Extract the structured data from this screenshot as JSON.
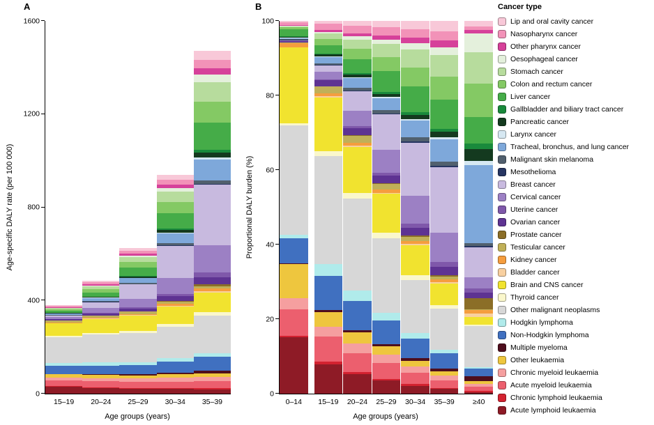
{
  "legend": {
    "title": "Cancer type",
    "items": [
      {
        "label": "Lip and oral cavity cancer",
        "color": "#f8c8d8"
      },
      {
        "label": "Nasopharynx cancer",
        "color": "#f292b8"
      },
      {
        "label": "Other pharynx cancer",
        "color": "#d6419a"
      },
      {
        "label": "Oesophageal cancer",
        "color": "#e4f0dc"
      },
      {
        "label": "Stomach cancer",
        "color": "#b7dc9d"
      },
      {
        "label": "Colon and rectum cancer",
        "color": "#84c964"
      },
      {
        "label": "Liver cancer",
        "color": "#45ac48"
      },
      {
        "label": "Gallbladder and biliary tract cancer",
        "color": "#198a3c"
      },
      {
        "label": "Pancreatic cancer",
        "color": "#143a1f"
      },
      {
        "label": "Larynx cancer",
        "color": "#d6e8f2"
      },
      {
        "label": "Tracheal, bronchus, and lung cancer",
        "color": "#7ea8da"
      },
      {
        "label": "Malignant skin melanoma",
        "color": "#51606e"
      },
      {
        "label": "Mesothelioma",
        "color": "#263561"
      },
      {
        "label": "Breast cancer",
        "color": "#c8badf"
      },
      {
        "label": "Cervical cancer",
        "color": "#9c80c4"
      },
      {
        "label": "Uterine cancer",
        "color": "#7f58aa"
      },
      {
        "label": "Ovarian cancer",
        "color": "#5e3392"
      },
      {
        "label": "Prostate cancer",
        "color": "#8b6e27"
      },
      {
        "label": "Testicular cancer",
        "color": "#c0b058"
      },
      {
        "label": "Kidney cancer",
        "color": "#f59d3e"
      },
      {
        "label": "Bladder cancer",
        "color": "#f8d0a0"
      },
      {
        "label": "Brain and CNS cancer",
        "color": "#f1e32f"
      },
      {
        "label": "Thyroid cancer",
        "color": "#faf7cc"
      },
      {
        "label": "Other malignant neoplasms",
        "color": "#d7d7d7"
      },
      {
        "label": "Hodgkin lymphoma",
        "color": "#b0ebeb"
      },
      {
        "label": "Non-Hodgkin lymphoma",
        "color": "#4070c0"
      },
      {
        "label": "Multiple myeloma",
        "color": "#4e0e1d"
      },
      {
        "label": "Other leukaemia",
        "color": "#eec63e"
      },
      {
        "label": "Chronic myeloid leukaemia",
        "color": "#f59f9f"
      },
      {
        "label": "Acute myeloid leukaemia",
        "color": "#ec5f6e"
      },
      {
        "label": "Chronic lymphoid leukaemia",
        "color": "#d32230"
      },
      {
        "label": "Acute lymphoid leukaemia",
        "color": "#8e1b26"
      }
    ]
  },
  "chart_data": [
    {
      "type": "bar",
      "stacked": true,
      "normalized": false,
      "panel_label": "A",
      "xlabel": "Age groups (years)",
      "ylabel": "Age-specific DALY rate (per 100 000)",
      "ylim": [
        0,
        1600
      ],
      "yticks": [
        0,
        400,
        800,
        1200,
        1600
      ],
      "bar_gap": 0,
      "separator_after": [],
      "categories": [
        "15–19",
        "20–24",
        "25–29",
        "30–34",
        "35–39"
      ],
      "series": [
        {
          "name": "Lip and oral cavity cancer",
          "values": [
            3,
            6,
            10,
            20,
            40
          ]
        },
        {
          "name": "Nasopharynx cancer",
          "values": [
            6,
            10,
            14,
            22,
            35
          ]
        },
        {
          "name": "Other pharynx cancer",
          "values": [
            2,
            4,
            7,
            14,
            28
          ]
        },
        {
          "name": "Oesophageal cancer",
          "values": [
            2,
            4,
            7,
            16,
            32
          ]
        },
        {
          "name": "Stomach cancer",
          "values": [
            5,
            12,
            22,
            45,
            85
          ]
        },
        {
          "name": "Colon and rectum cancer",
          "values": [
            7,
            14,
            24,
            48,
            90
          ]
        },
        {
          "name": "Liver cancer",
          "values": [
            8,
            18,
            35,
            65,
            115
          ]
        },
        {
          "name": "Gallbladder and biliary tract cancer",
          "values": [
            1,
            2,
            3,
            6,
            12
          ]
        },
        {
          "name": "Pancreatic cancer",
          "values": [
            2,
            3,
            5,
            11,
            22
          ]
        },
        {
          "name": "Larynx cancer",
          "values": [
            1,
            1.5,
            2,
            4,
            8
          ]
        },
        {
          "name": "Tracheal, bronchus, and lung cancer",
          "values": [
            6,
            12,
            20,
            42,
            90
          ]
        },
        {
          "name": "Malignant skin melanoma",
          "values": [
            2,
            4,
            6,
            10,
            15
          ]
        },
        {
          "name": "Mesothelioma",
          "values": [
            0.5,
            1,
            1.5,
            3,
            5
          ]
        },
        {
          "name": "Breast cancer",
          "values": [
            6,
            25,
            60,
            135,
            260
          ]
        },
        {
          "name": "Cervical cancer",
          "values": [
            8,
            20,
            38,
            70,
            115
          ]
        },
        {
          "name": "Uterine cancer",
          "values": [
            1,
            3,
            5,
            10,
            20
          ]
        },
        {
          "name": "Ovarian cancer",
          "values": [
            6,
            9,
            12,
            20,
            32
          ]
        },
        {
          "name": "Prostate cancer",
          "values": [
            0.5,
            1,
            1.5,
            3,
            7
          ]
        },
        {
          "name": "Testicular cancer",
          "values": [
            7,
            9,
            10,
            10,
            9
          ]
        },
        {
          "name": "Kidney cancer",
          "values": [
            3,
            4,
            5,
            8,
            13
          ]
        },
        {
          "name": "Bladder cancer",
          "values": [
            1,
            1.5,
            2,
            3,
            5
          ]
        },
        {
          "name": "Brain and CNS cancer",
          "values": [
            55,
            60,
            65,
            75,
            85
          ]
        },
        {
          "name": "Thyroid cancer",
          "values": [
            5,
            7,
            9,
            12,
            15
          ]
        },
        {
          "name": "Other malignant neoplasms",
          "values": [
            110,
            120,
            125,
            135,
            160
          ]
        },
        {
          "name": "Hodgkin lymphoma",
          "values": [
            12,
            13,
            13,
            14,
            15
          ]
        },
        {
          "name": "Non-Hodgkin lymphoma",
          "values": [
            35,
            38,
            40,
            48,
            60
          ]
        },
        {
          "name": "Multiple myeloma",
          "values": [
            2,
            3,
            4,
            7,
            12
          ]
        },
        {
          "name": "Other leukaemia",
          "values": [
            15,
            15,
            14,
            14,
            15
          ]
        },
        {
          "name": "Chronic myeloid leukaemia",
          "values": [
            10,
            12,
            14,
            17,
            20
          ]
        },
        {
          "name": "Acute myeloid leukaemia",
          "values": [
            25,
            25,
            26,
            28,
            30
          ]
        },
        {
          "name": "Chronic lymphoid leukaemia",
          "values": [
            3,
            3,
            3,
            4,
            5
          ]
        },
        {
          "name": "Acute lymphoid leukaemia",
          "values": [
            30,
            25,
            22,
            20,
            18
          ]
        }
      ]
    },
    {
      "type": "bar",
      "stacked": true,
      "normalized": true,
      "panel_label": "B",
      "xlabel": "Age groups (years)",
      "ylabel": "Proportional DALY burden (%)",
      "ylim": [
        0,
        100
      ],
      "yticks": [
        0,
        20,
        40,
        60,
        80,
        100
      ],
      "bar_gap": 1,
      "separator_after": [
        0,
        5
      ],
      "categories": [
        "0–14",
        "15–19",
        "20–24",
        "25–29",
        "30–34",
        "35–39",
        "≥40"
      ],
      "series": [
        {
          "name": "Lip and oral cavity cancer",
          "values": [
            0.3,
            3,
            6,
            10,
            20,
            40,
            1.5
          ]
        },
        {
          "name": "Nasopharynx cancer",
          "values": [
            0.8,
            6,
            10,
            14,
            22,
            35,
            0.8
          ]
        },
        {
          "name": "Other pharynx cancer",
          "values": [
            0.2,
            2,
            4,
            7,
            14,
            28,
            1
          ]
        },
        {
          "name": "Oesophageal cancer",
          "values": [
            0.1,
            2,
            4,
            7,
            16,
            32,
            5
          ]
        },
        {
          "name": "Stomach cancer",
          "values": [
            0.3,
            5,
            12,
            22,
            45,
            85,
            8.5
          ]
        },
        {
          "name": "Colon and rectum cancer",
          "values": [
            0.4,
            7,
            14,
            24,
            48,
            90,
            9
          ]
        },
        {
          "name": "Liver cancer",
          "values": [
            2,
            8,
            18,
            35,
            65,
            115,
            7
          ]
        },
        {
          "name": "Gallbladder and biliary tract cancer",
          "values": [
            0.1,
            1,
            2,
            3,
            6,
            12,
            1.5
          ]
        },
        {
          "name": "Pancreatic cancer",
          "values": [
            0.2,
            2,
            3,
            5,
            11,
            22,
            3.3
          ]
        },
        {
          "name": "Larynx cancer",
          "values": [
            0.1,
            1,
            1.5,
            2,
            4,
            8,
            1
          ]
        },
        {
          "name": "Tracheal, bronchus, and lung cancer",
          "values": [
            0.3,
            6,
            12,
            20,
            42,
            90,
            21
          ]
        },
        {
          "name": "Malignant skin melanoma",
          "values": [
            0.2,
            2,
            4,
            6,
            10,
            15,
            0.7
          ]
        },
        {
          "name": "Mesothelioma",
          "values": [
            0.05,
            0.5,
            1,
            1.5,
            3,
            5,
            0.4
          ]
        },
        {
          "name": "Breast cancer",
          "values": [
            0.1,
            6,
            25,
            60,
            135,
            260,
            8
          ]
        },
        {
          "name": "Cervical cancer",
          "values": [
            0.1,
            8,
            20,
            38,
            70,
            115,
            3
          ]
        },
        {
          "name": "Uterine cancer",
          "values": [
            0.05,
            1,
            3,
            5,
            10,
            20,
            1.2
          ]
        },
        {
          "name": "Ovarian cancer",
          "values": [
            0.3,
            6,
            9,
            12,
            20,
            32,
            1.5
          ]
        },
        {
          "name": "Prostate cancer",
          "values": [
            0.05,
            0.5,
            1,
            1.5,
            3,
            7,
            3
          ]
        },
        {
          "name": "Testicular cancer",
          "values": [
            0.3,
            7,
            9,
            10,
            10,
            9,
            0.1
          ]
        },
        {
          "name": "Kidney cancer",
          "values": [
            1,
            3,
            4,
            5,
            8,
            13,
            1
          ]
        },
        {
          "name": "Bladder cancer",
          "values": [
            0.1,
            1,
            1.5,
            2,
            3,
            5,
            1
          ]
        },
        {
          "name": "Brain and CNS cancer",
          "values": [
            20,
            55,
            60,
            65,
            75,
            85,
            2
          ]
        },
        {
          "name": "Thyroid cancer",
          "values": [
            0.5,
            5,
            7,
            9,
            12,
            15,
            0.4
          ]
        },
        {
          "name": "Other malignant neoplasms",
          "values": [
            29,
            110,
            120,
            125,
            135,
            160,
            11
          ]
        },
        {
          "name": "Hodgkin lymphoma",
          "values": [
            1,
            12,
            13,
            13,
            14,
            15,
            0.3
          ]
        },
        {
          "name": "Non-Hodgkin lymphoma",
          "values": [
            6.5,
            35,
            38,
            40,
            48,
            60,
            2.2
          ]
        },
        {
          "name": "Multiple myeloma",
          "values": [
            0.2,
            2,
            3,
            4,
            7,
            12,
            1.2
          ]
        },
        {
          "name": "Other leukaemia",
          "values": [
            9,
            15,
            15,
            14,
            14,
            15,
            0.8
          ]
        },
        {
          "name": "Chronic myeloid leukaemia",
          "values": [
            3,
            10,
            12,
            14,
            17,
            20,
            0.8
          ]
        },
        {
          "name": "Acute myeloid leukaemia",
          "values": [
            7,
            25,
            25,
            26,
            28,
            30,
            1
          ]
        },
        {
          "name": "Chronic lymphoid leukaemia",
          "values": [
            0.3,
            3,
            3,
            3,
            4,
            5,
            0.5
          ]
        },
        {
          "name": "Acute lymphoid leukaemia",
          "values": [
            15,
            30,
            25,
            22,
            20,
            18,
            0.3
          ]
        }
      ]
    }
  ]
}
